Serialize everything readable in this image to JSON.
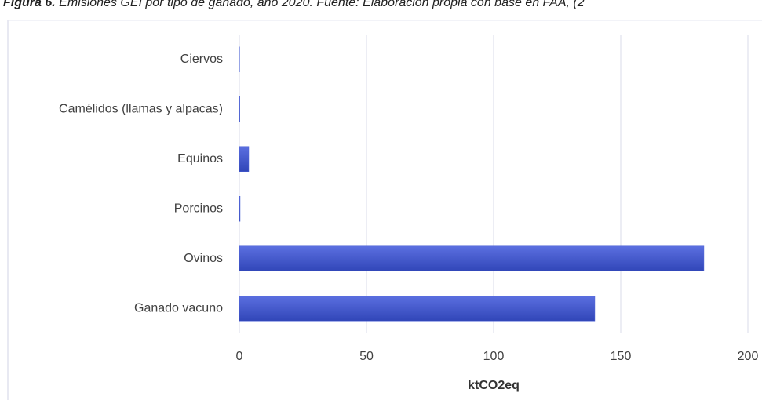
{
  "chart_data": {
    "type": "bar",
    "orientation": "horizontal",
    "title_label": "Figura 6.",
    "title": "Emisiones GEI por tipo de ganado, año 2020. Fuente: Elaboración propia con base en FAA, (2",
    "x_label": "ktCO2eq",
    "categories": [
      "Ciervos",
      "Camélidos (llamas y alpacas)",
      "Equinos",
      "Porcinos",
      "Ovinos",
      "Ganado vacuno"
    ],
    "values": [
      0.1,
      0.2,
      3.7,
      0.3,
      182.7,
      139.8
    ],
    "color": "#4a5fd4",
    "xlim": [
      0,
      200
    ],
    "xticks": [
      0,
      50,
      100,
      150,
      200
    ],
    "grid": true
  }
}
